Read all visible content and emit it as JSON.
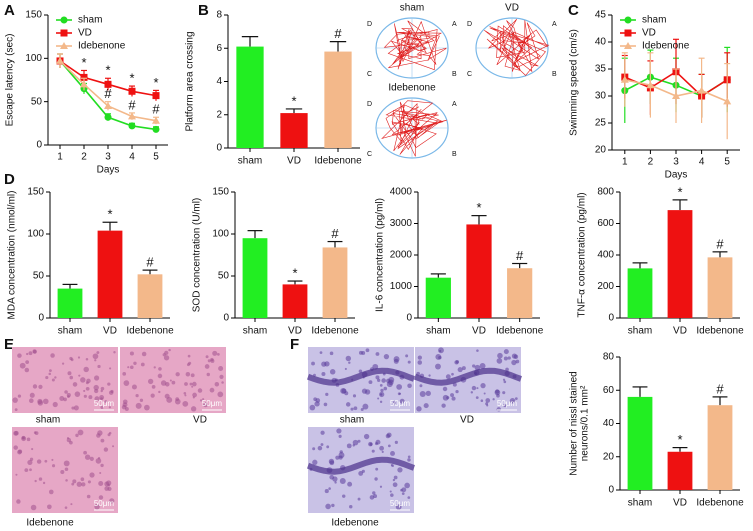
{
  "panel_letters": [
    "A",
    "B",
    "C",
    "D",
    "E",
    "F"
  ],
  "tracks": {
    "titles": [
      "sham",
      "VD",
      "Idebenone"
    ],
    "quadrants": [
      "D",
      "A",
      "C",
      "B"
    ]
  },
  "images": {
    "E": {
      "labels": [
        "sham",
        "VD",
        "Idebenone"
      ],
      "scale": "50μm"
    },
    "F": {
      "labels": [
        "sham",
        "VD",
        "Idebenone"
      ],
      "scale": "50μm"
    }
  },
  "chart_data": [
    {
      "type": "line",
      "ylabel": "Escape latency (sec)",
      "xlabel": "Days",
      "x": [
        1,
        2,
        3,
        4,
        5
      ],
      "xlim": [
        0.5,
        5.5
      ],
      "xticks": [
        1,
        2,
        3,
        4,
        5
      ],
      "ylim": [
        0,
        150
      ],
      "yticks": [
        0,
        50,
        100,
        150
      ],
      "legend": "upper left",
      "series": [
        {
          "name": "sham",
          "color": "#22dd22",
          "marker": "circle",
          "values": [
            97,
            65,
            32,
            22,
            18
          ],
          "errors": [
            8,
            6,
            4,
            3,
            3
          ]
        },
        {
          "name": "VD",
          "color": "#ee1111",
          "marker": "square",
          "values": [
            97,
            78,
            70,
            62,
            57
          ],
          "errors": [
            8,
            8,
            7,
            6,
            6
          ],
          "annotations": [
            null,
            "*",
            "*",
            "*",
            "*"
          ]
        },
        {
          "name": "Idebenone",
          "color": "#f3b88a",
          "marker": "triangle",
          "values": [
            97,
            70,
            45,
            33,
            28
          ],
          "errors": [
            8,
            7,
            5,
            4,
            4
          ],
          "annotations": [
            null,
            null,
            "#",
            "#",
            "#"
          ]
        }
      ]
    },
    {
      "type": "bar",
      "ylabel": "Platform area crossing",
      "categories": [
        "sham",
        "VD",
        "Idebenone"
      ],
      "ylim": [
        0,
        8
      ],
      "yticks": [
        0,
        2,
        4,
        6,
        8
      ],
      "colors": [
        "#22ee22",
        "#ee1111",
        "#f3b88a"
      ],
      "values": [
        6.1,
        2.1,
        5.8
      ],
      "errors": [
        0.6,
        0.25,
        0.6
      ],
      "annotations": [
        null,
        "*",
        "#"
      ]
    },
    {
      "type": "line",
      "ylabel": "Swimming speed (cm/s)",
      "xlabel": "Days",
      "x": [
        1,
        2,
        3,
        4,
        5
      ],
      "xlim": [
        0.5,
        5.5
      ],
      "xticks": [
        1,
        2,
        3,
        4,
        5
      ],
      "ylim": [
        20,
        45
      ],
      "yticks": [
        20,
        25,
        30,
        35,
        40,
        45
      ],
      "legend": "upper left",
      "series": [
        {
          "name": "sham",
          "color": "#22dd22",
          "marker": "circle",
          "values": [
            31,
            33.5,
            32,
            30,
            33
          ],
          "errors": [
            6,
            5,
            5,
            4,
            6
          ]
        },
        {
          "name": "VD",
          "color": "#ee1111",
          "marker": "square",
          "values": [
            33.5,
            31.5,
            34.5,
            30,
            33
          ],
          "errors": [
            4,
            5,
            6,
            4,
            5
          ]
        },
        {
          "name": "Idebenone",
          "color": "#f3b88a",
          "marker": "triangle",
          "values": [
            33,
            32,
            30,
            31,
            29
          ],
          "errors": [
            5,
            6,
            5,
            6,
            7
          ]
        }
      ]
    },
    {
      "type": "bar",
      "ylabel": "MDA concentration (nmol/ml)",
      "categories": [
        "sham",
        "VD",
        "Idebenone"
      ],
      "ylim": [
        0,
        150
      ],
      "yticks": [
        0,
        50,
        100,
        150
      ],
      "colors": [
        "#22ee22",
        "#ee1111",
        "#f3b88a"
      ],
      "values": [
        35,
        104,
        52
      ],
      "errors": [
        5,
        10,
        5
      ],
      "annotations": [
        null,
        "*",
        "#"
      ]
    },
    {
      "type": "bar",
      "ylabel": "SOD concentration (U/ml)",
      "categories": [
        "sham",
        "VD",
        "Idebenone"
      ],
      "ylim": [
        0,
        150
      ],
      "yticks": [
        0,
        50,
        100,
        150
      ],
      "colors": [
        "#22ee22",
        "#ee1111",
        "#f3b88a"
      ],
      "values": [
        95,
        40,
        84
      ],
      "errors": [
        9,
        4,
        7
      ],
      "annotations": [
        null,
        "*",
        "#"
      ]
    },
    {
      "type": "bar",
      "ylabel": "IL-6 concentration (pg/ml)",
      "categories": [
        "sham",
        "VD",
        "Idebenone"
      ],
      "ylim": [
        0,
        4000
      ],
      "yticks": [
        0,
        1000,
        2000,
        3000,
        4000
      ],
      "colors": [
        "#22ee22",
        "#ee1111",
        "#f3b88a"
      ],
      "values": [
        1280,
        2970,
        1580
      ],
      "errors": [
        120,
        280,
        150
      ],
      "annotations": [
        null,
        "*",
        "#"
      ]
    },
    {
      "type": "bar",
      "ylabel": "TNF-α concentration (pg/ml)",
      "categories": [
        "sham",
        "VD",
        "Idebenone"
      ],
      "ylim": [
        0,
        800
      ],
      "yticks": [
        0,
        200,
        400,
        600,
        800
      ],
      "colors": [
        "#22ee22",
        "#ee1111",
        "#f3b88a"
      ],
      "values": [
        315,
        685,
        385
      ],
      "errors": [
        35,
        65,
        35
      ],
      "annotations": [
        null,
        "*",
        "#"
      ]
    },
    {
      "type": "bar",
      "ylabel": [
        "Number of nissl stained",
        "neurons/0.1 mm²"
      ],
      "categories": [
        "sham",
        "VD",
        "Idebenone"
      ],
      "ylim": [
        0,
        80
      ],
      "yticks": [
        0,
        20,
        40,
        60,
        80
      ],
      "colors": [
        "#22ee22",
        "#ee1111",
        "#f3b88a"
      ],
      "values": [
        56,
        23,
        51
      ],
      "errors": [
        6,
        2.5,
        5
      ],
      "annotations": [
        null,
        "*",
        "#"
      ]
    }
  ]
}
